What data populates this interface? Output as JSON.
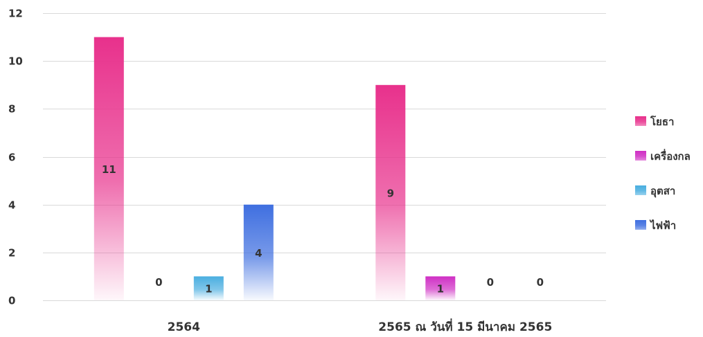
{
  "chart_data": {
    "type": "bar",
    "categories": [
      "2564",
      "2565 ณ วันที่ 15 มีนาคม 2565"
    ],
    "series": [
      {
        "name": "โยธา",
        "values": [
          11,
          9
        ],
        "color": "#e8318c"
      },
      {
        "name": "เครื่องกล",
        "values": [
          0,
          1
        ],
        "color": "#cf2fc4"
      },
      {
        "name": "อุตสา",
        "values": [
          1,
          0
        ],
        "color": "#4aaee0"
      },
      {
        "name": "ไฟฟ้า",
        "values": [
          4,
          0
        ],
        "color": "#3f6fe0"
      }
    ],
    "ylim": [
      0,
      12
    ],
    "yticks": [
      0,
      2,
      4,
      6,
      8,
      10,
      12
    ],
    "grid": true,
    "legend_position": "right",
    "title": "",
    "xlabel": "",
    "ylabel": ""
  }
}
